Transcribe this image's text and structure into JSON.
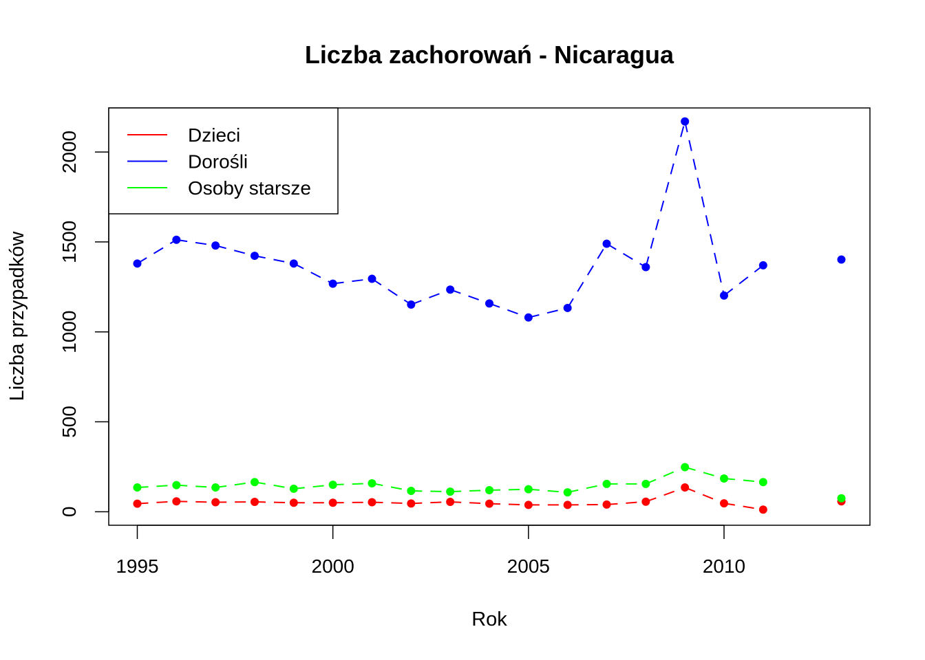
{
  "chart_data": {
    "type": "line",
    "title": "Liczba zachorowań -  Nicaragua",
    "xlabel": "Rok",
    "ylabel": "Liczba przypadków",
    "xlim": [
      1994.27,
      2013.73
    ],
    "ylim": [
      -75,
      2245
    ],
    "x_ticks": [
      1995,
      2000,
      2005,
      2010
    ],
    "y_ticks": [
      0,
      500,
      1000,
      1500,
      2000
    ],
    "grid": false,
    "legend_position": "top-left",
    "series": [
      {
        "name": "Dzieci",
        "color": "#ff0000",
        "x": [
          1995,
          1996,
          1997,
          1998,
          1999,
          2000,
          2001,
          2002,
          2003,
          2004,
          2005,
          2006,
          2007,
          2008,
          2009,
          2010,
          2011,
          2013
        ],
        "values": [
          45,
          58,
          53,
          55,
          50,
          50,
          53,
          46,
          55,
          45,
          38,
          38,
          40,
          56,
          135,
          47,
          12,
          58
        ]
      },
      {
        "name": "Dorośli",
        "color": "#0000ff",
        "x": [
          1995,
          1996,
          1997,
          1998,
          1999,
          2000,
          2001,
          2002,
          2003,
          2004,
          2005,
          2006,
          2007,
          2008,
          2009,
          2010,
          2011,
          2013
        ],
        "values": [
          1380,
          1512,
          1480,
          1423,
          1380,
          1268,
          1295,
          1152,
          1235,
          1158,
          1080,
          1133,
          1490,
          1360,
          2170,
          1202,
          1370,
          1402
        ]
      },
      {
        "name": "Osoby starsze",
        "color": "#00ff00",
        "x": [
          1995,
          1996,
          1997,
          1998,
          1999,
          2000,
          2001,
          2002,
          2003,
          2004,
          2005,
          2006,
          2007,
          2008,
          2009,
          2010,
          2011,
          2013
        ],
        "values": [
          135,
          148,
          135,
          165,
          128,
          150,
          158,
          116,
          112,
          120,
          125,
          108,
          155,
          155,
          248,
          185,
          165,
          75
        ]
      }
    ]
  }
}
